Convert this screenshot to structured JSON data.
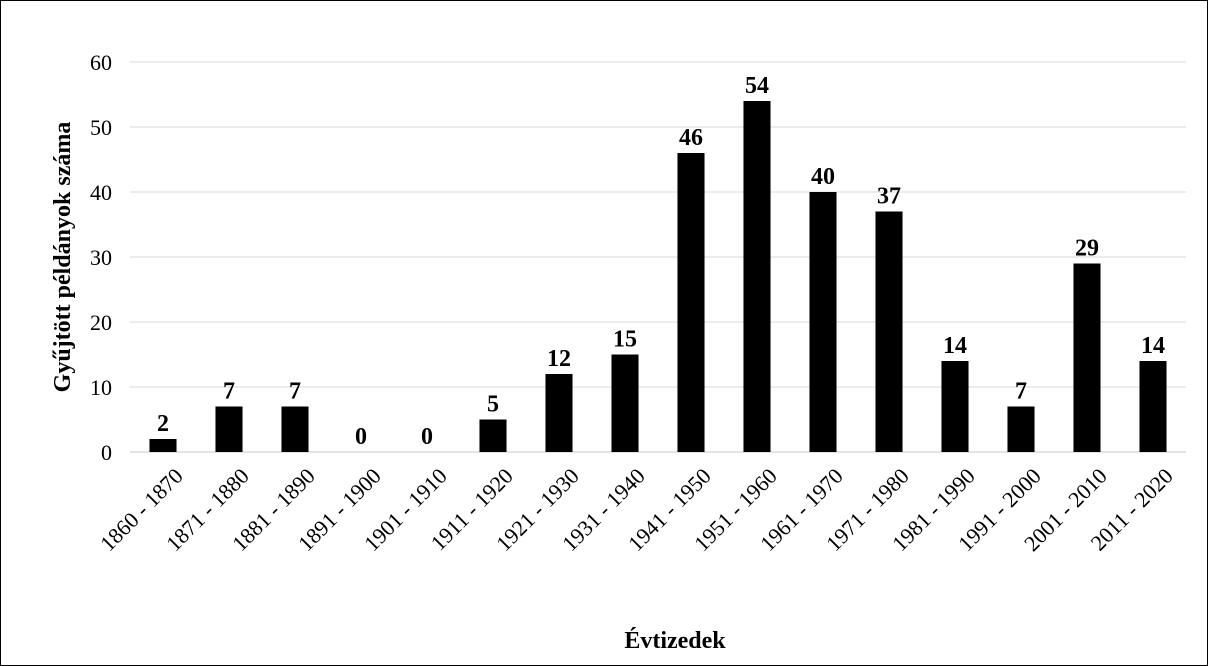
{
  "chart_data": {
    "type": "bar",
    "categories": [
      "1860 - 1870",
      "1871 - 1880",
      "1881 - 1890",
      "1891 - 1900",
      "1901 - 1910",
      "1911 - 1920",
      "1921 - 1930",
      "1931 - 1940",
      "1941 - 1950",
      "1951 - 1960",
      "1961 - 1970",
      "1971 - 1980",
      "1981 - 1990",
      "1991 - 2000",
      "2001 - 2010",
      "2011 - 2020"
    ],
    "values": [
      2,
      7,
      7,
      0,
      0,
      5,
      12,
      15,
      46,
      54,
      40,
      37,
      14,
      7,
      29,
      14
    ],
    "title": "",
    "xlabel": "Évtizedek",
    "ylabel": "Gyűjtött példányok száma",
    "ylim": [
      0,
      60
    ],
    "yticks": [
      0,
      10,
      20,
      30,
      40,
      50,
      60
    ],
    "grid": true,
    "bar_color": "#000000",
    "grid_color": "#d9d9d9",
    "data_labels": true
  }
}
